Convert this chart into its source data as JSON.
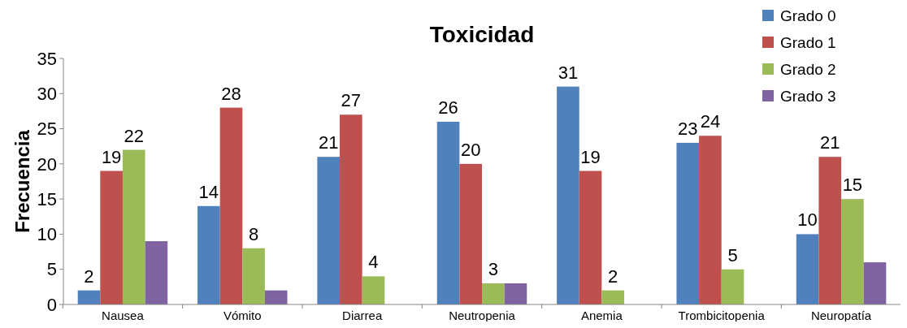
{
  "chart_data": {
    "type": "bar",
    "title": "Toxicidad",
    "ylabel": "Frecuencia",
    "categories": [
      "Nausea",
      "Vómito",
      "Diarrea",
      "Neutropenia",
      "Anemia",
      "Trombicitopenia",
      "Neuropatía"
    ],
    "series": [
      {
        "name": "Grado 0",
        "color": "#4f81bd",
        "values": [
          2,
          14,
          21,
          26,
          31,
          23,
          10
        ],
        "value_labels": [
          "2",
          "14",
          "21",
          "26",
          "31",
          "23",
          "10"
        ]
      },
      {
        "name": "Grado 1",
        "color": "#c0504d",
        "values": [
          19,
          28,
          27,
          20,
          19,
          24,
          21
        ],
        "value_labels": [
          "19",
          "28",
          "27",
          "20",
          "19",
          "24",
          "21"
        ]
      },
      {
        "name": "Grado 2",
        "color": "#9bbb59",
        "values": [
          22,
          8,
          4,
          3,
          2,
          5,
          15
        ],
        "value_labels": [
          "22",
          "8",
          "4",
          "3",
          "2",
          "5",
          "15"
        ]
      },
      {
        "name": "Grado 3",
        "color": "#8064a2",
        "values": [
          9,
          2,
          null,
          3,
          null,
          null,
          6
        ],
        "value_labels": [
          null,
          null,
          null,
          null,
          null,
          null,
          null
        ]
      }
    ],
    "ylim": [
      0,
      35
    ],
    "yticks": [
      0,
      5,
      10,
      15,
      20,
      25,
      30,
      35
    ],
    "grid": false,
    "legend": "top right"
  }
}
